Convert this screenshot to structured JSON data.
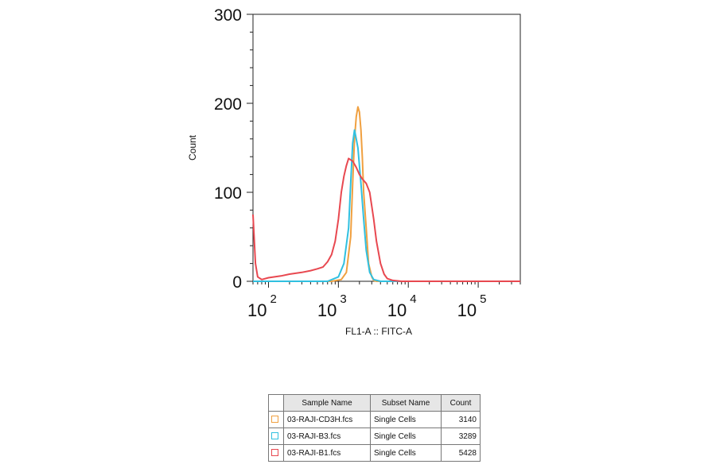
{
  "chart_data": {
    "type": "line",
    "title": "",
    "xlabel": "FL1-A :: FITC-A",
    "ylabel": "Count",
    "x_scale": "log",
    "xlim": [
      60,
      400000
    ],
    "ylim": [
      0,
      300
    ],
    "y_ticks": [
      0,
      100,
      200,
      300
    ],
    "x_ticks": [
      {
        "value": 100,
        "base": "10",
        "exp": "2"
      },
      {
        "value": 1000,
        "base": "10",
        "exp": "3"
      },
      {
        "value": 10000,
        "base": "10",
        "exp": "4"
      },
      {
        "value": 100000,
        "base": "10",
        "exp": "5"
      }
    ],
    "grid": false,
    "series": [
      {
        "name": "03-RAJI-CD3H.fcs",
        "color": "#f0a040",
        "x": [
          60,
          80,
          100,
          300,
          800,
          1100,
          1300,
          1500,
          1600,
          1700,
          1800,
          1900,
          2000,
          2100,
          2200,
          2300,
          2500,
          2700,
          3000,
          3200,
          3500,
          4000,
          5000,
          10000,
          100000,
          400000
        ],
        "y": [
          0,
          0,
          0,
          0,
          0,
          2,
          10,
          50,
          110,
          160,
          185,
          196,
          190,
          170,
          140,
          100,
          60,
          20,
          5,
          1,
          0,
          0,
          0,
          0,
          0,
          0
        ]
      },
      {
        "name": "03-RAJI-B3.fcs",
        "color": "#30c0e0",
        "x": [
          60,
          80,
          100,
          300,
          700,
          1000,
          1200,
          1400,
          1500,
          1600,
          1700,
          1800,
          1900,
          2000,
          2100,
          2300,
          2500,
          2800,
          3200,
          4000,
          10000,
          100000,
          400000
        ],
        "y": [
          0,
          0,
          0,
          0,
          0,
          5,
          20,
          60,
          110,
          155,
          170,
          160,
          150,
          130,
          110,
          70,
          35,
          10,
          2,
          0,
          0,
          0,
          0
        ]
      },
      {
        "name": "03-RAJI-B1.fcs",
        "color": "#e84850",
        "x": [
          60,
          65,
          70,
          80,
          100,
          150,
          200,
          300,
          400,
          500,
          600,
          700,
          800,
          900,
          1000,
          1100,
          1200,
          1300,
          1400,
          1600,
          1800,
          2000,
          2200,
          2500,
          2800,
          3200,
          3500,
          4000,
          4500,
          5000,
          6000,
          8000,
          10000,
          100000,
          400000
        ],
        "y": [
          75,
          20,
          5,
          2,
          4,
          6,
          8,
          10,
          12,
          14,
          16,
          22,
          30,
          45,
          70,
          100,
          118,
          130,
          138,
          135,
          128,
          120,
          115,
          110,
          100,
          70,
          45,
          20,
          8,
          3,
          1,
          0,
          0,
          0,
          0
        ]
      }
    ],
    "legend_table": {
      "headers": [
        "Sample Name",
        "Subset Name",
        "Count"
      ],
      "rows": [
        {
          "sample": "03-RAJI-CD3H.fcs",
          "subset": "Single Cells",
          "count": "3140",
          "color": "#f0a040"
        },
        {
          "sample": "03-RAJI-B3.fcs",
          "subset": "Single Cells",
          "count": "3289",
          "color": "#30c0e0"
        },
        {
          "sample": "03-RAJI-B1.fcs",
          "subset": "Single Cells",
          "count": "5428",
          "color": "#e84850"
        }
      ]
    }
  }
}
